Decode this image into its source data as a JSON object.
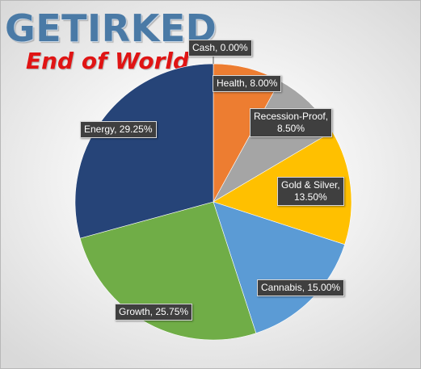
{
  "header": {
    "brand": "GETIRKED",
    "title": "End of World"
  },
  "chart_data": {
    "type": "pie",
    "title": "End of World",
    "slices": [
      {
        "name": "Cash",
        "value": 0.0,
        "label": "Cash, 0.00%",
        "color": "#4472c4"
      },
      {
        "name": "Health",
        "value": 8.0,
        "label": "Health, 8.00%",
        "color": "#ed7d31"
      },
      {
        "name": "Recession-Proof",
        "value": 8.5,
        "label": "Recession-Proof, 8.50%",
        "color": "#a5a5a5"
      },
      {
        "name": "Gold & Silver",
        "value": 13.5,
        "label": "Gold & Silver, 13.50%",
        "color": "#ffc000"
      },
      {
        "name": "Cannabis",
        "value": 15.0,
        "label": "Cannabis, 15.00%",
        "color": "#5b9bd5"
      },
      {
        "name": "Growth",
        "value": 25.75,
        "label": "Growth, 25.75%",
        "color": "#70ad47"
      },
      {
        "name": "Energy",
        "value": 29.25,
        "label": "Energy, 29.25%",
        "color": "#264478"
      }
    ],
    "start_angle": "12 o'clock, clockwise",
    "legend": "none (data labels with callouts)"
  }
}
